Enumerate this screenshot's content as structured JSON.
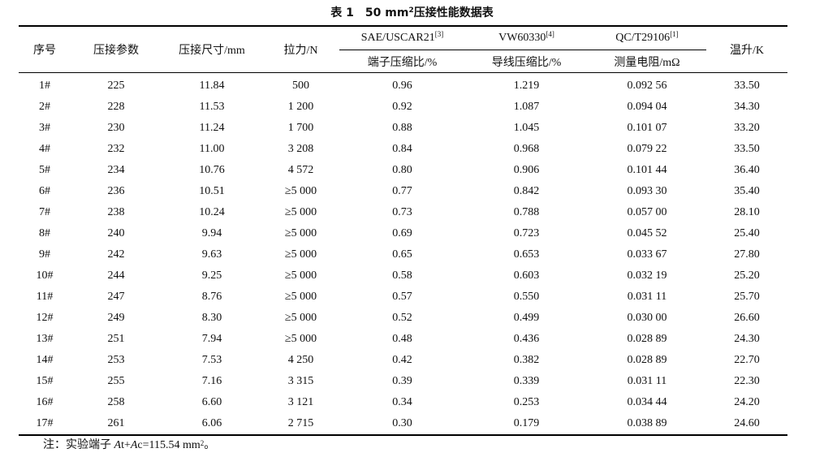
{
  "title": {
    "number": "表 1",
    "prefix": "50 mm",
    "sup": "2",
    "suffix": "压接性能数据表"
  },
  "headers": {
    "seq": "序号",
    "param": "压接参数",
    "size": "压接尺寸/mm",
    "force": "拉力/N",
    "sae": "SAE/USCAR21",
    "sae_ref": "[3]",
    "vw": "VW60330",
    "vw_ref": "[4]",
    "qc": "QC/T29106",
    "qc_ref": "[1]",
    "temp": "温升/K",
    "sae_sub": "端子压缩比/%",
    "vw_sub": "导线压缩比/%",
    "qc_sub": "测量电阻/mΩ"
  },
  "rows": [
    [
      "1#",
      "225",
      "11.84",
      "500",
      "0.96",
      "1.219",
      "0.092 56",
      "33.50"
    ],
    [
      "2#",
      "228",
      "11.53",
      "1 200",
      "0.92",
      "1.087",
      "0.094 04",
      "34.30"
    ],
    [
      "3#",
      "230",
      "11.24",
      "1 700",
      "0.88",
      "1.045",
      "0.101 07",
      "33.20"
    ],
    [
      "4#",
      "232",
      "11.00",
      "3 208",
      "0.84",
      "0.968",
      "0.079 22",
      "33.50"
    ],
    [
      "5#",
      "234",
      "10.76",
      "4 572",
      "0.80",
      "0.906",
      "0.101 44",
      "36.40"
    ],
    [
      "6#",
      "236",
      "10.51",
      "≥5 000",
      "0.77",
      "0.842",
      "0.093 30",
      "35.40"
    ],
    [
      "7#",
      "238",
      "10.24",
      "≥5 000",
      "0.73",
      "0.788",
      "0.057 00",
      "28.10"
    ],
    [
      "8#",
      "240",
      "9.94",
      "≥5 000",
      "0.69",
      "0.723",
      "0.045 52",
      "25.40"
    ],
    [
      "9#",
      "242",
      "9.63",
      "≥5 000",
      "0.65",
      "0.653",
      "0.033 67",
      "27.80"
    ],
    [
      "10#",
      "244",
      "9.25",
      "≥5 000",
      "0.58",
      "0.603",
      "0.032 19",
      "25.20"
    ],
    [
      "11#",
      "247",
      "8.76",
      "≥5 000",
      "0.57",
      "0.550",
      "0.031 11",
      "25.70"
    ],
    [
      "12#",
      "249",
      "8.30",
      "≥5 000",
      "0.52",
      "0.499",
      "0.030 00",
      "26.60"
    ],
    [
      "13#",
      "251",
      "7.94",
      "≥5 000",
      "0.48",
      "0.436",
      "0.028 89",
      "24.30"
    ],
    [
      "14#",
      "253",
      "7.53",
      "4 250",
      "0.42",
      "0.382",
      "0.028 89",
      "22.70"
    ],
    [
      "15#",
      "255",
      "7.16",
      "3 315",
      "0.39",
      "0.339",
      "0.031 11",
      "22.30"
    ],
    [
      "16#",
      "258",
      "6.60",
      "3 121",
      "0.34",
      "0.253",
      "0.034 44",
      "24.20"
    ],
    [
      "17#",
      "261",
      "6.06",
      "2 715",
      "0.30",
      "0.179",
      "0.038 89",
      "24.60"
    ]
  ],
  "note": {
    "label": "注：实验端子",
    "var_a": "A",
    "var_a_sub": "t",
    "plus": "+",
    "var_b": "A",
    "var_b_sub": "c",
    "value": "=115.54 mm",
    "sup": "2",
    "end": "。"
  }
}
